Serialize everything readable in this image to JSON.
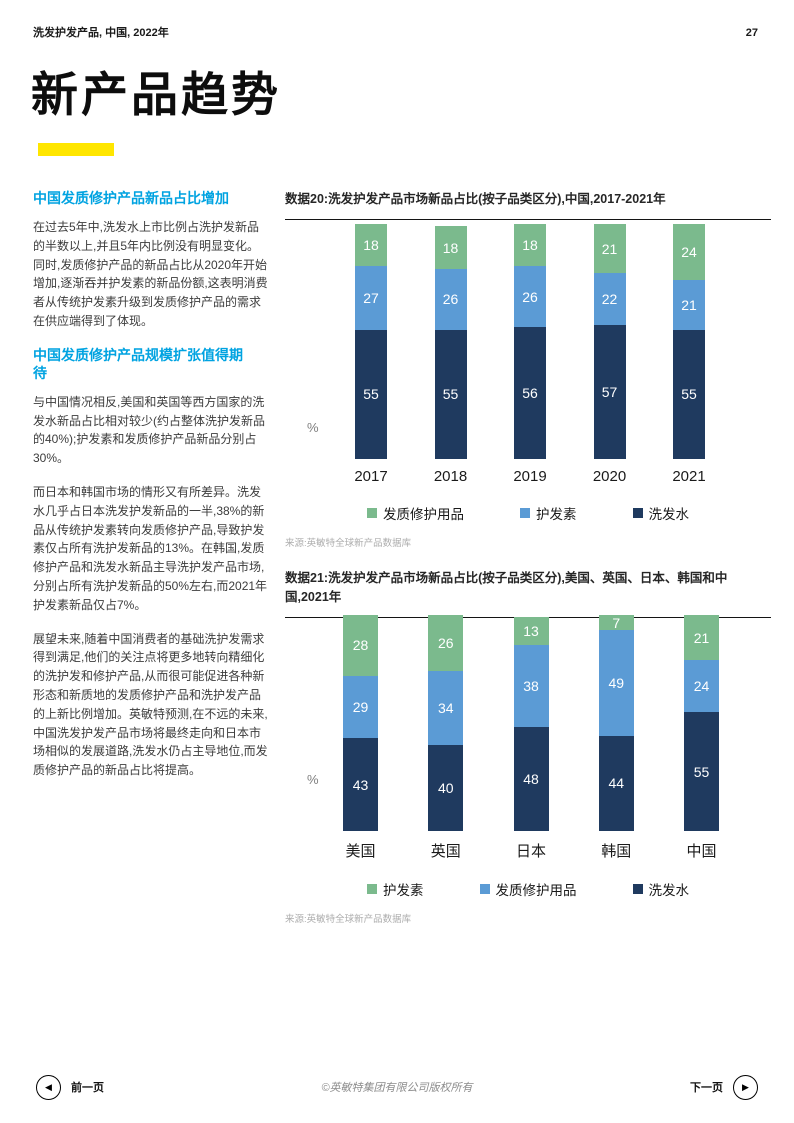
{
  "header": {
    "report_title": "洗发护发产品, 中国, 2022年",
    "page_number": "27"
  },
  "title": "新产品趋势",
  "colors": {
    "accent_yellow": "#ffe600",
    "heading_blue": "#00a3e1",
    "shampoo_navy": "#1f3a5f",
    "mid_blue": "#5b9bd5",
    "green": "#7bba8d"
  },
  "left_column": {
    "heading1": "中国发质修护产品新品占比增加",
    "para1": "在过去5年中,洗发水上市比例占洗护发新品的半数以上,并且5年内比例没有明显变化。同时,发质修护产品的新品占比从2020年开始增加,逐渐吞并护发素的新品份额,这表明消费者从传统护发素升级到发质修护产品的需求在供应端得到了体现。",
    "heading2": "中国发质修护产品规模扩张值得期待",
    "para2": "与中国情况相反,美国和英国等西方国家的洗发水新品占比相对较少(约占整体洗护发新品的40%);护发素和发质修护产品新品分别占30%。",
    "para3": "而日本和韩国市场的情形又有所差异。洗发水几乎占日本洗发护发新品的一半,38%的新品从传统护发素转向发质修护产品,导致护发素仅占所有洗护发新品的13%。在韩国,发质修护产品和洗发水新品主导洗护发产品市场,分别占所有洗护发新品的50%左右,而2021年护发素新品仅占7%。",
    "para4": "展望未来,随着中国消费者的基础洗护发需求得到满足,他们的关注点将更多地转向精细化的洗护发和修护产品,从而很可能促进各种新形态和新质地的发质修护产品和洗护发产品的上新比例增加。英敏特预测,在不远的未来,中国洗发护发产品市场将最终走向和日本市场相似的发展道路,洗发水仍占主导地位,而发质修护产品的新品占比将提高。"
  },
  "chart_data": [
    {
      "type": "bar",
      "stacked": true,
      "title": "数据20:洗发护发产品市场新品占比(按子品类区分),中国,2017-2021年",
      "ylabel": "%",
      "ylim": [
        0,
        100
      ],
      "grid": false,
      "value_labels": true,
      "legend_position": "bottom",
      "categories": [
        "2017",
        "2018",
        "2019",
        "2020",
        "2021"
      ],
      "series": [
        {
          "name": "洗发水",
          "color": "#1f3a5f",
          "values": [
            55,
            55,
            56,
            57,
            55
          ]
        },
        {
          "name": "护发素",
          "color": "#5b9bd5",
          "values": [
            27,
            26,
            26,
            22,
            21
          ]
        },
        {
          "name": "发质修护用品",
          "color": "#7bba8d",
          "values": [
            18,
            18,
            18,
            21,
            24
          ]
        }
      ],
      "source": "来源:英敏特全球新产品数据库"
    },
    {
      "type": "bar",
      "stacked": true,
      "title": "数据21:洗发护发产品市场新品占比(按子品类区分),美国、英国、日本、韩国和中国,2021年",
      "ylabel": "%",
      "ylim": [
        0,
        100
      ],
      "grid": false,
      "value_labels": true,
      "legend_position": "bottom",
      "categories": [
        "美国",
        "英国",
        "日本",
        "韩国",
        "中国"
      ],
      "series": [
        {
          "name": "洗发水",
          "color": "#1f3a5f",
          "values": [
            43,
            40,
            48,
            44,
            55
          ]
        },
        {
          "name": "发质修护用品",
          "color": "#5b9bd5",
          "values": [
            29,
            34,
            38,
            49,
            24
          ]
        },
        {
          "name": "护发素",
          "color": "#7bba8d",
          "values": [
            28,
            26,
            13,
            7,
            21
          ]
        }
      ],
      "source": "来源:英敏特全球新产品数据库"
    }
  ],
  "footer": {
    "prev_label": "前一页",
    "next_label": "下一页",
    "prev_icon": "◀",
    "next_icon": "▶",
    "copyright": "©英敏特集团有限公司版权所有"
  }
}
